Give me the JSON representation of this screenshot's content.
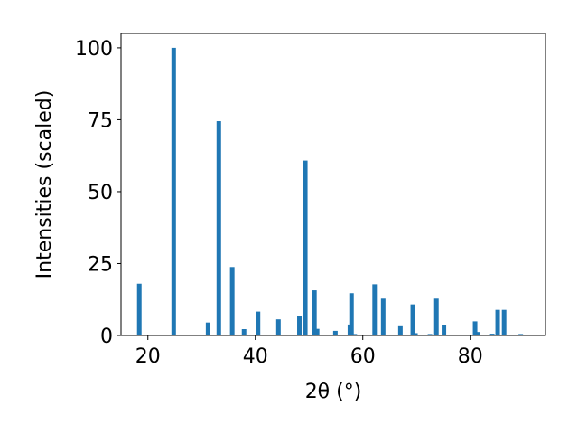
{
  "chart_data": {
    "type": "bar",
    "title": "",
    "xlabel": "2θ (°)",
    "ylabel": "Intensities (scaled)",
    "xlim": [
      15,
      94
    ],
    "ylim": [
      0,
      105
    ],
    "xticks": [
      20,
      40,
      60,
      80
    ],
    "yticks": [
      0,
      25,
      50,
      75,
      100
    ],
    "grid": false,
    "bar_color": "#1f77b4",
    "series": [
      {
        "x": [
          18.4,
          24.8,
          31.2,
          33.2,
          35.7,
          37.9,
          40.5,
          44.3,
          48.2,
          49.3,
          51.0,
          51.5,
          54.9,
          57.6,
          57.9,
          58.5,
          62.2,
          63.8,
          67.0,
          69.3,
          69.8,
          72.5,
          73.7,
          75.1,
          80.9,
          81.4,
          84.1,
          85.1,
          86.3,
          89.4
        ],
        "values": [
          18,
          100,
          4.5,
          74.5,
          23.8,
          2.2,
          8.3,
          5.6,
          6.8,
          60.8,
          15.7,
          2.3,
          1.6,
          3.8,
          14.7,
          0.5,
          17.8,
          12.8,
          3.2,
          10.8,
          0.8,
          0.5,
          12.8,
          3.7,
          4.9,
          1.2,
          0.6,
          8.9,
          8.9,
          0.5
        ]
      }
    ]
  }
}
